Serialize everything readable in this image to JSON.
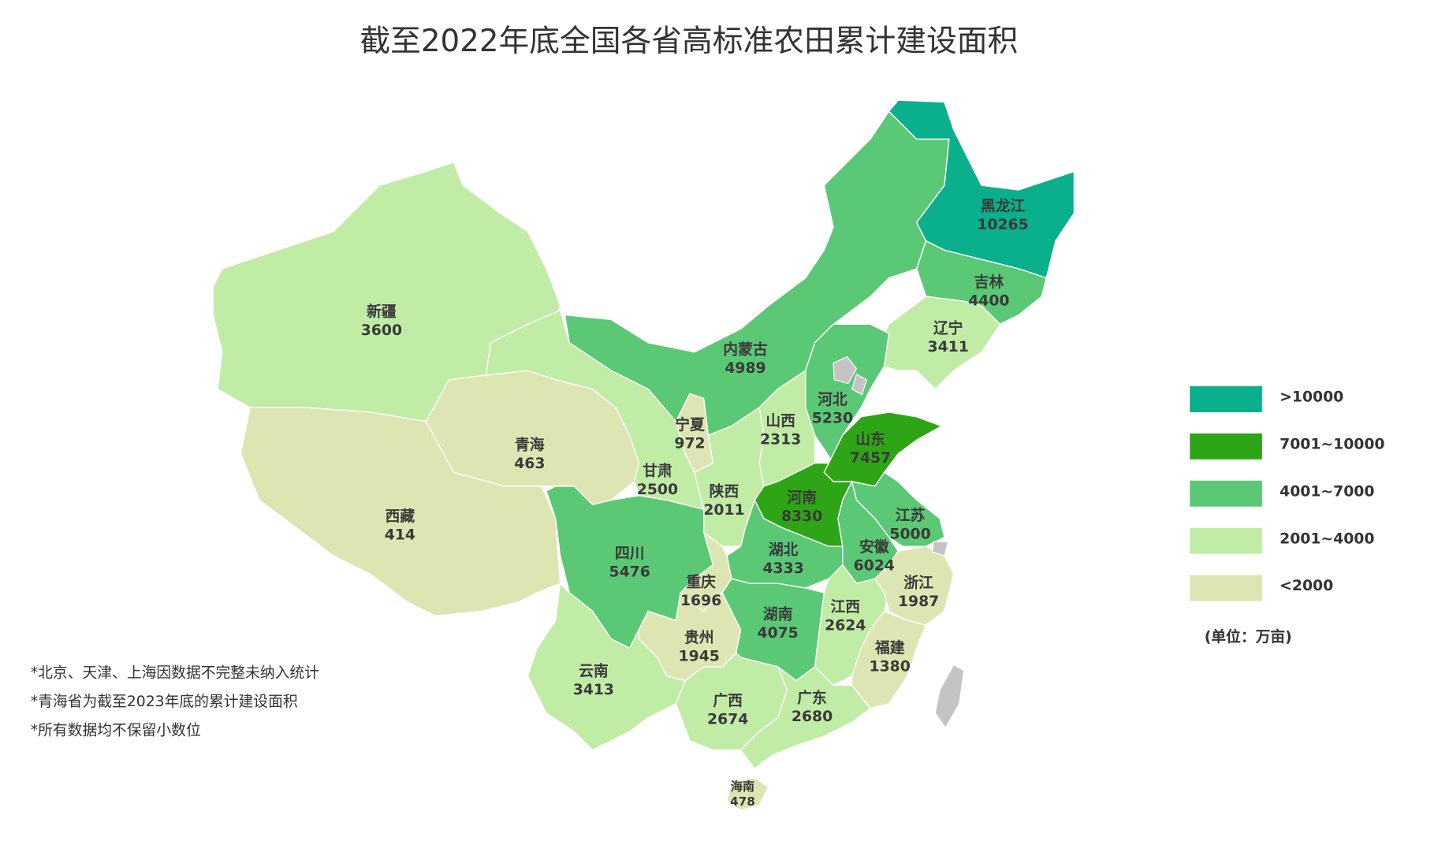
{
  "title": "截至2022年底全国各省高标准农田累计建设面积",
  "regions": [
    {
      "name": "新疆",
      "value": 3600,
      "color": "#c0eca6"
    },
    {
      "name": "西藏",
      "value": 414,
      "color": "#dde6b2"
    },
    {
      "name": "青海",
      "value": 463,
      "color": "#dde6b2"
    },
    {
      "name": "甘肃",
      "value": 2500,
      "color": "#c0eca6"
    },
    {
      "name": "宁夏",
      "value": 972,
      "color": "#dde6b2"
    },
    {
      "name": "内蒙古",
      "value": 4989,
      "color": "#5ac875"
    },
    {
      "name": "黑龙江",
      "value": 10265,
      "color": "#0aaf8b"
    },
    {
      "name": "吉林",
      "value": 4400,
      "color": "#5ac875"
    },
    {
      "name": "辽宁",
      "value": 3411,
      "color": "#c0eca6"
    },
    {
      "name": "河北",
      "value": 5230,
      "color": "#5ac875"
    },
    {
      "name": "山西",
      "value": 2313,
      "color": "#c0eca6"
    },
    {
      "name": "陕西",
      "value": 2011,
      "color": "#c0eca6"
    },
    {
      "name": "河南",
      "value": 8330,
      "color": "#2ea516"
    },
    {
      "name": "山东",
      "value": 7457,
      "color": "#2ea516"
    },
    {
      "name": "江苏",
      "value": 5000,
      "color": "#5ac875"
    },
    {
      "name": "安徽",
      "value": 6024,
      "color": "#5ac875"
    },
    {
      "name": "湖北",
      "value": 4333,
      "color": "#5ac875"
    },
    {
      "name": "四川",
      "value": 5476,
      "color": "#5ac875"
    },
    {
      "name": "重庆",
      "value": 1696,
      "color": "#dde6b2"
    },
    {
      "name": "云南",
      "value": 3413,
      "color": "#c0eca6"
    },
    {
      "name": "贵州",
      "value": 1945,
      "color": "#dde6b2"
    },
    {
      "name": "湖南",
      "value": 4075,
      "color": "#5ac875"
    },
    {
      "name": "江西",
      "value": 2624,
      "color": "#c0eca6"
    },
    {
      "name": "浙江",
      "value": 1987,
      "color": "#dde6b2"
    },
    {
      "name": "福建",
      "value": 1380,
      "color": "#dde6b2"
    },
    {
      "name": "广西",
      "value": 2674,
      "color": "#c0eca6"
    },
    {
      "name": "广东",
      "value": 2680,
      "color": "#c0eca6"
    },
    {
      "name": "海南",
      "value": 478,
      "color": "#dde6b2"
    }
  ],
  "legend": [
    {
      "label": ">10000",
      "color": "#0aaf8b"
    },
    {
      "label": "7001~10000",
      "color": "#2ea516"
    },
    {
      "label": "4001~7000",
      "color": "#5ac875"
    },
    {
      "label": "2001~4000",
      "color": "#c0eca6"
    },
    {
      "label": "<2000",
      "color": "#dde6b2"
    }
  ],
  "unit": "(单位：万亩)",
  "notes": [
    "*北京、天津、上海因数据不完整未纳入统计",
    "*青海省为截至2023年底的累计建设面积",
    "*所有数据均不保留小数位"
  ]
}
